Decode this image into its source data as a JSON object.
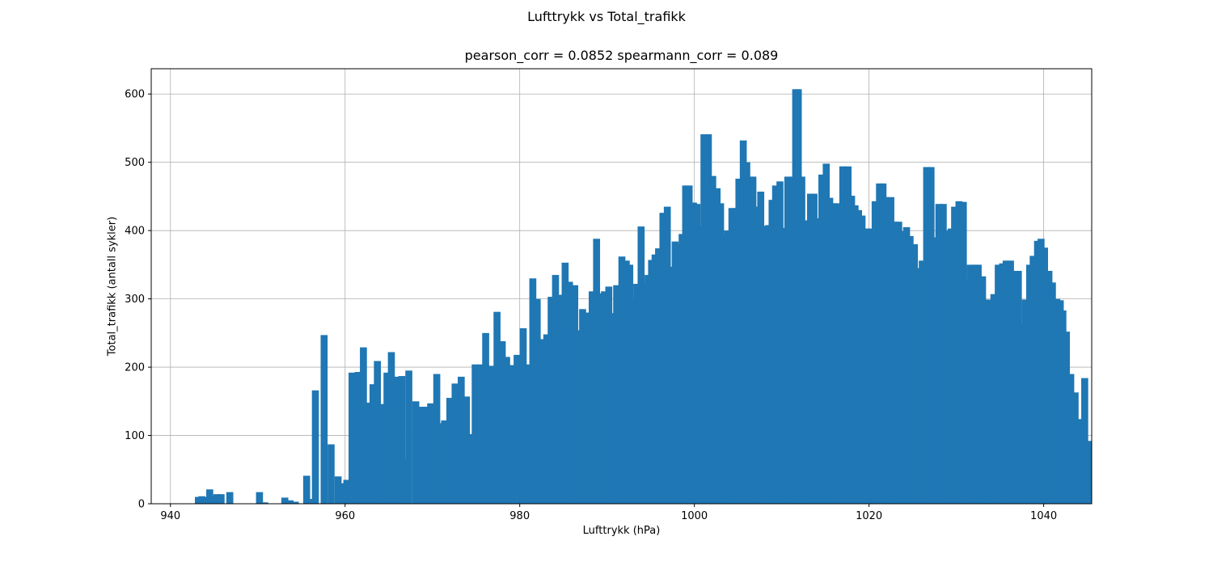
{
  "figure": {
    "suptitle": "Lufttrykk vs Total_trafikk",
    "title": "pearson_corr = 0.0852 spearmann_corr = 0.089"
  },
  "chart_data": {
    "type": "bar",
    "xlabel": "Lufttrykk (hPa)",
    "ylabel": "Total_trafikk (antall sykler)",
    "xlim": [
      937.8,
      1045.5
    ],
    "ylim": [
      0,
      637
    ],
    "xticks": [
      940,
      960,
      980,
      1000,
      1020,
      1040
    ],
    "yticks": [
      0,
      100,
      200,
      300,
      400,
      500,
      600
    ],
    "grid": true,
    "bar_color": "#1f77b4",
    "bar_width": 0.8,
    "bars": [
      [
        943.2,
        10
      ],
      [
        943.6,
        11
      ],
      [
        944,
        10
      ],
      [
        944.5,
        21
      ],
      [
        944.9,
        10
      ],
      [
        945.3,
        14
      ],
      [
        945.8,
        14
      ],
      [
        946.8,
        17
      ],
      [
        950.2,
        17
      ],
      [
        950.8,
        2
      ],
      [
        953.1,
        9
      ],
      [
        953.7,
        5
      ],
      [
        954.3,
        3
      ],
      [
        955.6,
        41
      ],
      [
        956,
        7
      ],
      [
        956.6,
        166
      ],
      [
        957.6,
        247
      ],
      [
        958.4,
        87
      ],
      [
        959.2,
        40
      ],
      [
        959.8,
        30
      ],
      [
        960.2,
        35
      ],
      [
        960.8,
        192
      ],
      [
        961.5,
        193
      ],
      [
        962.1,
        229
      ],
      [
        962.7,
        148
      ],
      [
        963.2,
        175
      ],
      [
        963.7,
        209
      ],
      [
        964.3,
        146
      ],
      [
        964.8,
        192
      ],
      [
        965.3,
        222
      ],
      [
        965.9,
        186
      ],
      [
        966.5,
        187
      ],
      [
        966.8,
        65
      ],
      [
        967.3,
        195
      ],
      [
        968.1,
        150
      ],
      [
        968.7,
        142
      ],
      [
        969.3,
        142
      ],
      [
        969.8,
        147
      ],
      [
        970.5,
        190
      ],
      [
        971,
        118
      ],
      [
        971.4,
        122
      ],
      [
        972,
        155
      ],
      [
        972.6,
        176
      ],
      [
        973.3,
        186
      ],
      [
        973.9,
        157
      ],
      [
        974.5,
        102
      ],
      [
        974.9,
        204
      ],
      [
        975.5,
        204
      ],
      [
        976.1,
        250
      ],
      [
        976.8,
        202
      ],
      [
        977.4,
        281
      ],
      [
        978,
        238
      ],
      [
        978.5,
        215
      ],
      [
        979.1,
        203
      ],
      [
        979.7,
        218
      ],
      [
        980.4,
        257
      ],
      [
        980.9,
        204
      ],
      [
        981.5,
        330
      ],
      [
        982,
        300
      ],
      [
        982.5,
        241
      ],
      [
        983.1,
        248
      ],
      [
        983.6,
        303
      ],
      [
        984.1,
        335
      ],
      [
        984.6,
        306
      ],
      [
        985.2,
        353
      ],
      [
        985.7,
        325
      ],
      [
        986.3,
        320
      ],
      [
        986.7,
        254
      ],
      [
        987.2,
        285
      ],
      [
        987.7,
        280
      ],
      [
        988.3,
        311
      ],
      [
        988.8,
        388
      ],
      [
        989.3,
        308
      ],
      [
        989.7,
        311
      ],
      [
        990.2,
        318
      ],
      [
        990.6,
        279
      ],
      [
        991.1,
        320
      ],
      [
        991.7,
        362
      ],
      [
        992.2,
        356
      ],
      [
        992.6,
        350
      ],
      [
        993,
        297
      ],
      [
        993.4,
        322
      ],
      [
        993.9,
        406
      ],
      [
        994.3,
        322
      ],
      [
        994.7,
        335
      ],
      [
        995.1,
        357
      ],
      [
        995.5,
        365
      ],
      [
        995.9,
        374
      ],
      [
        996.4,
        426
      ],
      [
        996.9,
        435
      ],
      [
        997.4,
        347
      ],
      [
        997.8,
        384
      ],
      [
        998.2,
        380
      ],
      [
        998.6,
        395
      ],
      [
        999,
        466
      ],
      [
        999.4,
        466
      ],
      [
        999.9,
        441
      ],
      [
        1000.3,
        439
      ],
      [
        1000.8,
        406
      ],
      [
        1001.1,
        541
      ],
      [
        1001.6,
        541
      ],
      [
        1002.1,
        480
      ],
      [
        1002.6,
        462
      ],
      [
        1003,
        440
      ],
      [
        1003.3,
        394
      ],
      [
        1003.8,
        400
      ],
      [
        1004.3,
        433
      ],
      [
        1004.7,
        433
      ],
      [
        1005.1,
        476
      ],
      [
        1005.6,
        532
      ],
      [
        1006,
        500
      ],
      [
        1006.4,
        479
      ],
      [
        1006.7,
        479
      ],
      [
        1007.1,
        435
      ],
      [
        1007.6,
        457
      ],
      [
        1008,
        407
      ],
      [
        1008.5,
        408
      ],
      [
        1008.9,
        445
      ],
      [
        1009.3,
        466
      ],
      [
        1009.8,
        472
      ],
      [
        1010.3,
        404
      ],
      [
        1010.7,
        479
      ],
      [
        1011.2,
        479
      ],
      [
        1011.6,
        607
      ],
      [
        1011.9,
        607
      ],
      [
        1012.3,
        479
      ],
      [
        1012.8,
        415
      ],
      [
        1013.3,
        454
      ],
      [
        1013.7,
        454
      ],
      [
        1014.2,
        418
      ],
      [
        1014.6,
        482
      ],
      [
        1015.1,
        498
      ],
      [
        1015.5,
        448
      ],
      [
        1015.9,
        440
      ],
      [
        1016.3,
        440
      ],
      [
        1016.7,
        390
      ],
      [
        1017,
        494
      ],
      [
        1017.6,
        494
      ],
      [
        1018,
        451
      ],
      [
        1018.4,
        437
      ],
      [
        1018.8,
        430
      ],
      [
        1019.2,
        422
      ],
      [
        1019.7,
        403
      ],
      [
        1020.2,
        403
      ],
      [
        1020.7,
        443
      ],
      [
        1021.2,
        469
      ],
      [
        1021.6,
        469
      ],
      [
        1022,
        449
      ],
      [
        1022.5,
        449
      ],
      [
        1022.9,
        413
      ],
      [
        1023.4,
        413
      ],
      [
        1023.8,
        399
      ],
      [
        1024.3,
        405
      ],
      [
        1024.7,
        392
      ],
      [
        1025.2,
        380
      ],
      [
        1025.6,
        345
      ],
      [
        1026.1,
        356
      ],
      [
        1026.6,
        493
      ],
      [
        1027.1,
        493
      ],
      [
        1027.5,
        390
      ],
      [
        1028,
        439
      ],
      [
        1028.5,
        439
      ],
      [
        1028.9,
        400
      ],
      [
        1029.4,
        403
      ],
      [
        1029.8,
        435
      ],
      [
        1030.3,
        443
      ],
      [
        1030.8,
        442
      ],
      [
        1031.2,
        328
      ],
      [
        1031.6,
        350
      ],
      [
        1032.1,
        350
      ],
      [
        1032.5,
        350
      ],
      [
        1033,
        333
      ],
      [
        1033.3,
        299
      ],
      [
        1033.8,
        299
      ],
      [
        1034.3,
        307
      ],
      [
        1034.8,
        350
      ],
      [
        1035.3,
        352
      ],
      [
        1035.7,
        356
      ],
      [
        1036.2,
        356
      ],
      [
        1036.6,
        341
      ],
      [
        1037.1,
        341
      ],
      [
        1037.6,
        262
      ],
      [
        1037.9,
        299
      ],
      [
        1038.4,
        350
      ],
      [
        1038.8,
        363
      ],
      [
        1039.3,
        385
      ],
      [
        1039.7,
        388
      ],
      [
        1040.1,
        375
      ],
      [
        1040.6,
        341
      ],
      [
        1041,
        324
      ],
      [
        1041.5,
        300
      ],
      [
        1041.9,
        298
      ],
      [
        1042.2,
        283
      ],
      [
        1042.6,
        252
      ],
      [
        1043.1,
        190
      ],
      [
        1043.6,
        163
      ],
      [
        1044,
        60
      ],
      [
        1044.3,
        124
      ],
      [
        1044.7,
        184
      ],
      [
        1045.1,
        92
      ]
    ]
  }
}
